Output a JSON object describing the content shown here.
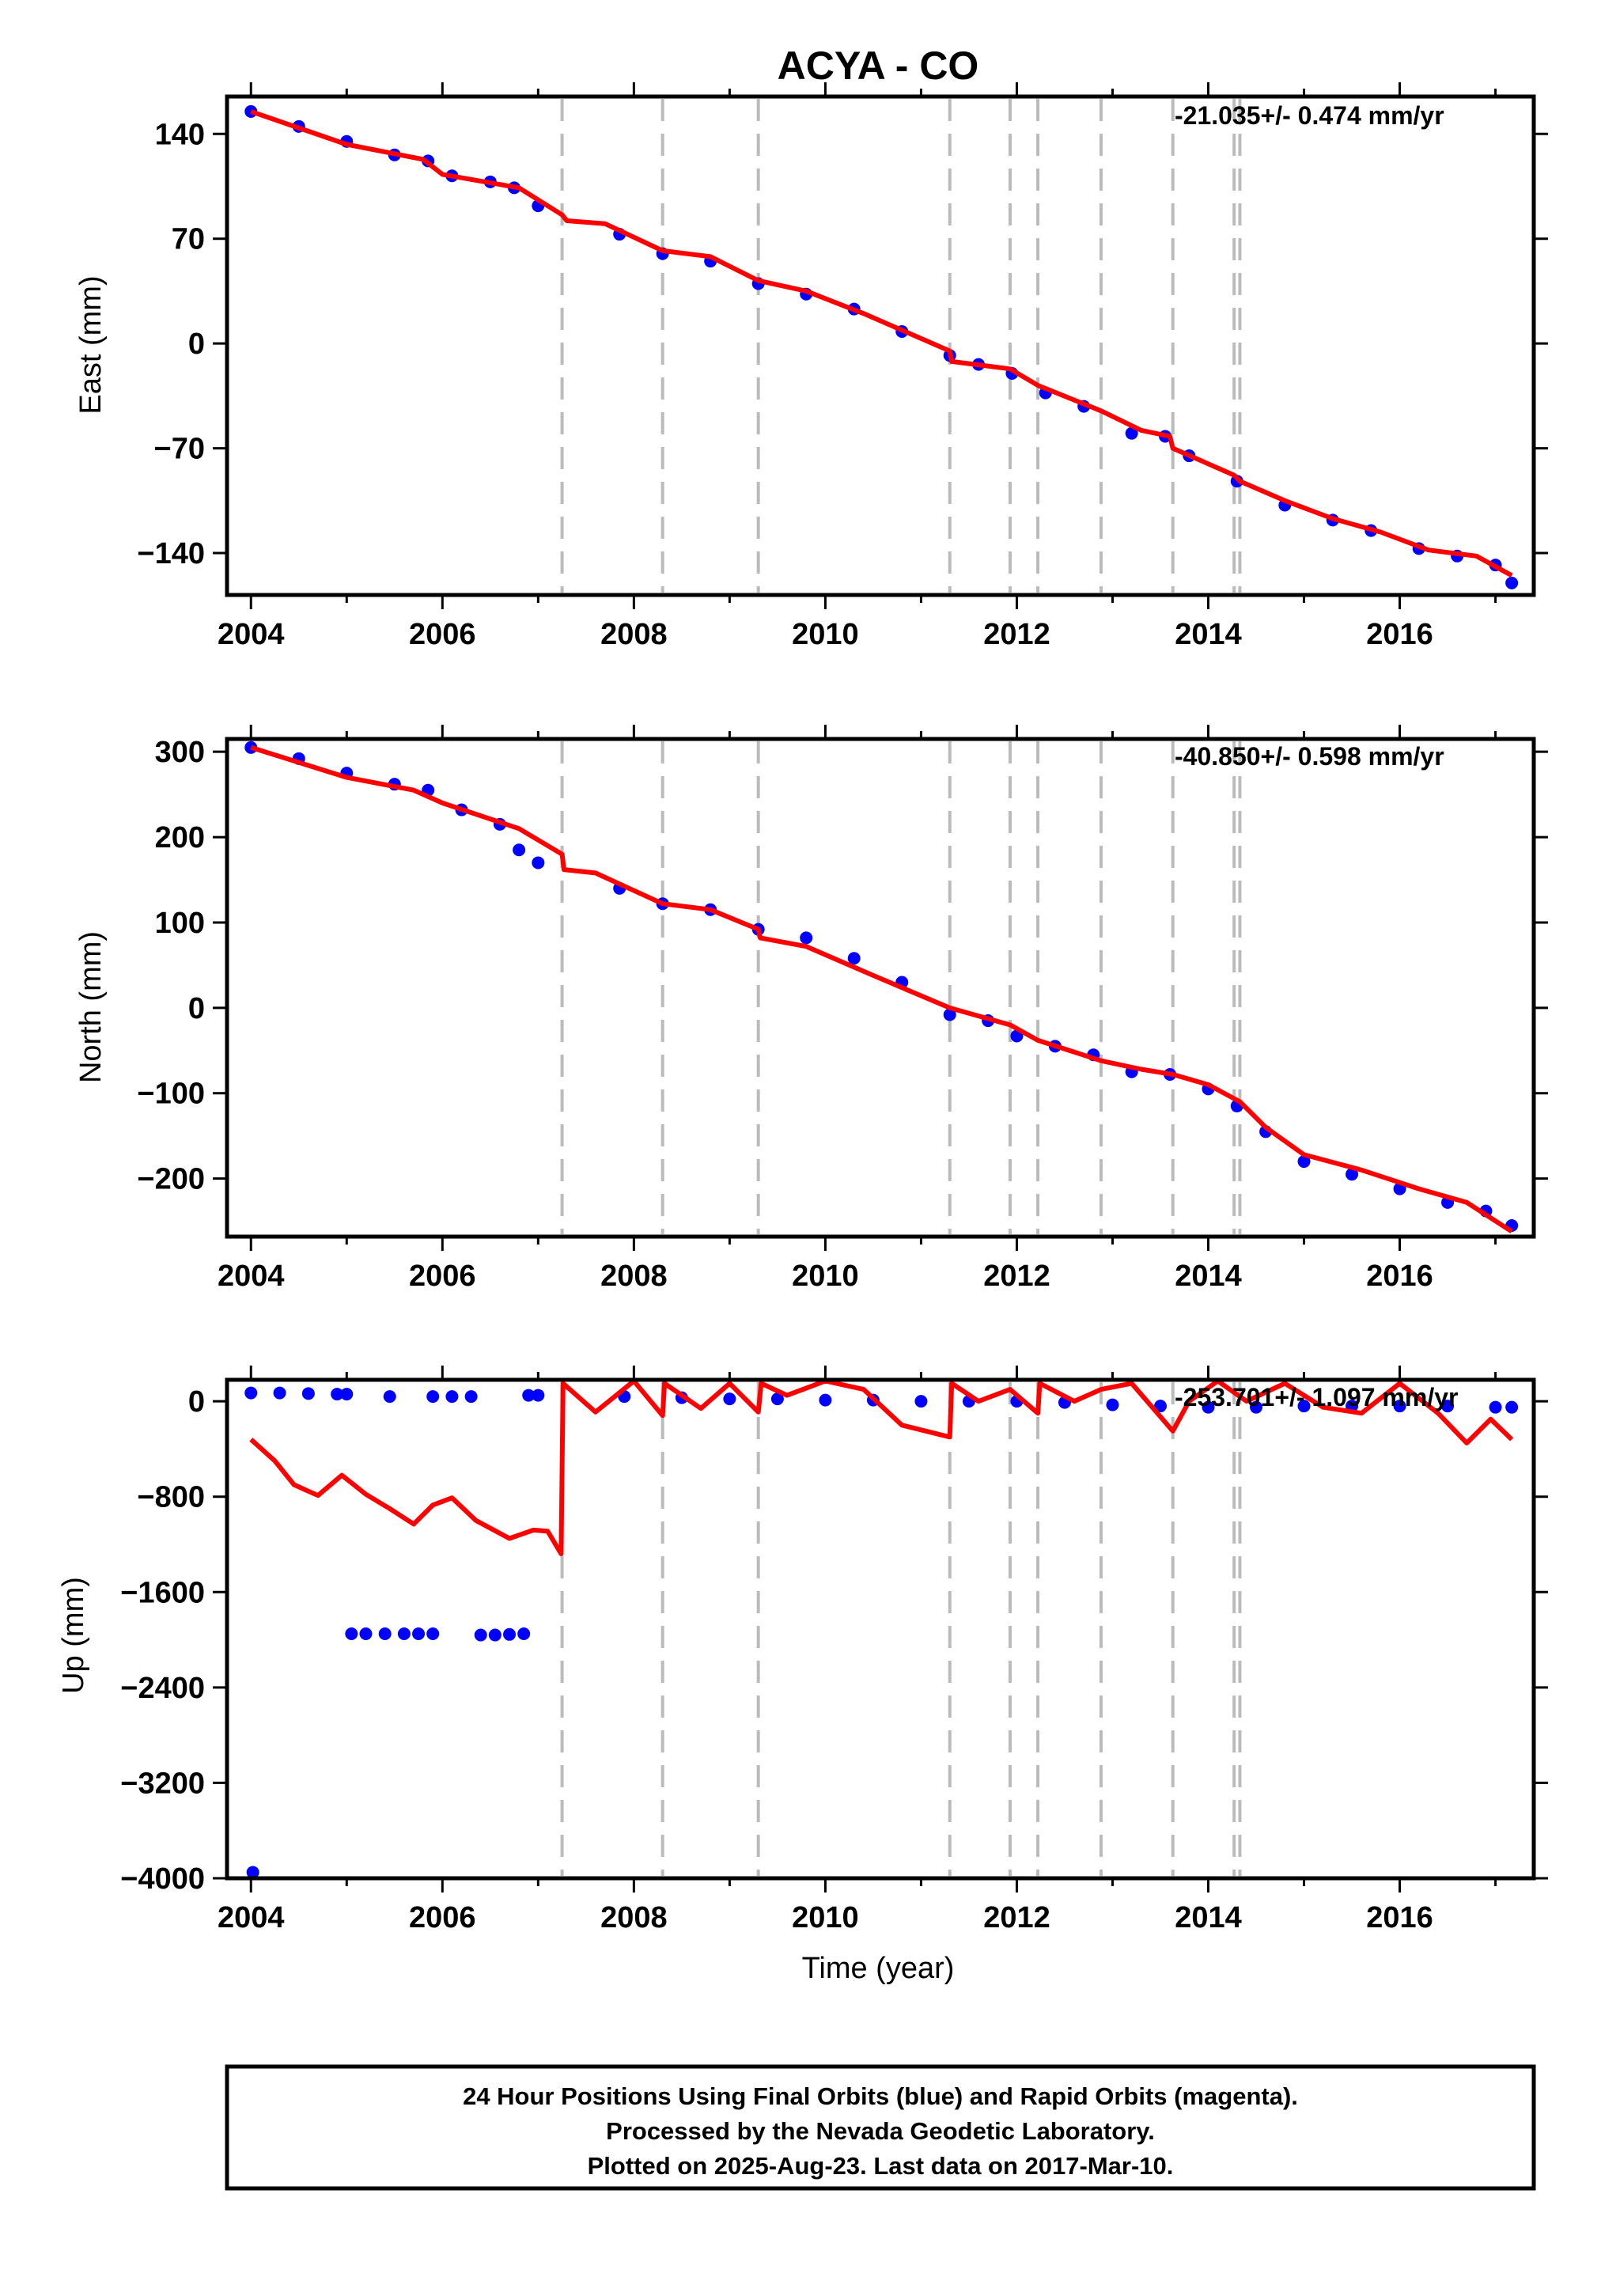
{
  "chart_data": {
    "type": "scatter",
    "title": "ACYA - CO",
    "xlabel": "Time (year)",
    "colors": {
      "final_orbits": "#0000ff",
      "model": "#ff0000",
      "offset_lines": "#bbbbbb",
      "frame": "#000000"
    },
    "x_range": [
      2003.75,
      2017.4
    ],
    "x_ticks": [
      2004,
      2006,
      2008,
      2010,
      2012,
      2014,
      2016
    ],
    "offset_lines": [
      2007.25,
      2008.3,
      2009.3,
      2011.3,
      2011.93,
      2012.22,
      2012.88,
      2013.63,
      2014.27,
      2014.33
    ],
    "panels": [
      {
        "name": "east",
        "ylabel": "East (mm)",
        "ylim": [
          -168,
          165
        ],
        "y_ticks": [
          140,
          70,
          0,
          -70,
          -140
        ],
        "rate": "-21.035+/- 0.474 mm/yr",
        "observations": [
          [
            2004.0,
            155
          ],
          [
            2004.5,
            145
          ],
          [
            2005.0,
            135
          ],
          [
            2005.5,
            126
          ],
          [
            2005.85,
            122
          ],
          [
            2006.1,
            112
          ],
          [
            2006.5,
            108
          ],
          [
            2006.75,
            104
          ],
          [
            2007.0,
            92
          ],
          [
            2007.85,
            73
          ],
          [
            2008.3,
            60
          ],
          [
            2008.8,
            55
          ],
          [
            2009.3,
            40
          ],
          [
            2009.8,
            33
          ],
          [
            2010.3,
            23
          ],
          [
            2010.8,
            8
          ],
          [
            2011.3,
            -8
          ],
          [
            2011.6,
            -14
          ],
          [
            2011.95,
            -20
          ],
          [
            2012.3,
            -33
          ],
          [
            2012.7,
            -42
          ],
          [
            2013.2,
            -60
          ],
          [
            2013.55,
            -62
          ],
          [
            2013.8,
            -75
          ],
          [
            2014.3,
            -92
          ],
          [
            2014.8,
            -108
          ],
          [
            2015.3,
            -118
          ],
          [
            2015.7,
            -125
          ],
          [
            2016.2,
            -137
          ],
          [
            2016.6,
            -142
          ],
          [
            2017.0,
            -148
          ],
          [
            2017.17,
            -160
          ]
        ],
        "model": [
          [
            2004.0,
            155
          ],
          [
            2005.0,
            133
          ],
          [
            2005.8,
            123
          ],
          [
            2006.0,
            113
          ],
          [
            2006.8,
            104
          ],
          [
            2007.25,
            86
          ],
          [
            2007.3,
            82
          ],
          [
            2007.7,
            80
          ],
          [
            2008.3,
            62
          ],
          [
            2008.8,
            58
          ],
          [
            2009.3,
            42
          ],
          [
            2009.8,
            35
          ],
          [
            2010.4,
            20
          ],
          [
            2011.3,
            -5
          ],
          [
            2011.32,
            -12
          ],
          [
            2011.93,
            -17
          ],
          [
            2012.22,
            -28
          ],
          [
            2012.88,
            -45
          ],
          [
            2013.3,
            -58
          ],
          [
            2013.6,
            -62
          ],
          [
            2013.63,
            -70
          ],
          [
            2014.27,
            -88
          ],
          [
            2014.33,
            -92
          ],
          [
            2014.8,
            -105
          ],
          [
            2015.3,
            -117
          ],
          [
            2015.8,
            -126
          ],
          [
            2016.3,
            -138
          ],
          [
            2016.8,
            -142
          ],
          [
            2017.17,
            -155
          ]
        ]
      },
      {
        "name": "north",
        "ylabel": "North (mm)",
        "ylim": [
          -268,
          315
        ],
        "y_ticks": [
          300,
          200,
          100,
          0,
          -100,
          -200
        ],
        "rate": "-40.850+/- 0.598 mm/yr",
        "observations": [
          [
            2004.0,
            305
          ],
          [
            2004.5,
            292
          ],
          [
            2005.0,
            275
          ],
          [
            2005.5,
            262
          ],
          [
            2005.85,
            255
          ],
          [
            2006.2,
            232
          ],
          [
            2006.6,
            215
          ],
          [
            2006.8,
            185
          ],
          [
            2007.0,
            170
          ],
          [
            2007.85,
            140
          ],
          [
            2008.3,
            122
          ],
          [
            2008.8,
            115
          ],
          [
            2009.3,
            92
          ],
          [
            2009.8,
            82
          ],
          [
            2010.3,
            58
          ],
          [
            2010.8,
            30
          ],
          [
            2011.3,
            -8
          ],
          [
            2011.7,
            -15
          ],
          [
            2012.0,
            -33
          ],
          [
            2012.4,
            -45
          ],
          [
            2012.8,
            -55
          ],
          [
            2013.2,
            -75
          ],
          [
            2013.6,
            -78
          ],
          [
            2014.0,
            -95
          ],
          [
            2014.3,
            -115
          ],
          [
            2014.6,
            -145
          ],
          [
            2015.0,
            -180
          ],
          [
            2015.5,
            -195
          ],
          [
            2016.0,
            -212
          ],
          [
            2016.5,
            -228
          ],
          [
            2016.9,
            -238
          ],
          [
            2017.17,
            -255
          ]
        ],
        "model": [
          [
            2004.0,
            305
          ],
          [
            2005.0,
            270
          ],
          [
            2005.7,
            255
          ],
          [
            2006.0,
            240
          ],
          [
            2006.8,
            210
          ],
          [
            2007.25,
            180
          ],
          [
            2007.27,
            162
          ],
          [
            2007.6,
            158
          ],
          [
            2008.3,
            122
          ],
          [
            2008.8,
            115
          ],
          [
            2009.3,
            92
          ],
          [
            2009.32,
            82
          ],
          [
            2009.8,
            72
          ],
          [
            2010.5,
            38
          ],
          [
            2011.3,
            0
          ],
          [
            2011.93,
            -20
          ],
          [
            2012.22,
            -38
          ],
          [
            2012.88,
            -62
          ],
          [
            2013.3,
            -72
          ],
          [
            2013.63,
            -78
          ],
          [
            2014.0,
            -90
          ],
          [
            2014.33,
            -110
          ],
          [
            2014.6,
            -140
          ],
          [
            2015.0,
            -172
          ],
          [
            2015.6,
            -190
          ],
          [
            2016.2,
            -212
          ],
          [
            2016.7,
            -228
          ],
          [
            2017.17,
            -262
          ]
        ]
      },
      {
        "name": "up",
        "ylabel": "Up (mm)",
        "ylim": [
          -4000,
          180
        ],
        "y_ticks": [
          0,
          -800,
          -1600,
          -2400,
          -3200,
          -4000
        ],
        "rate": "-253.701+/- 1.097 mm/yr",
        "observations": [
          [
            2004.0,
            70
          ],
          [
            2004.3,
            70
          ],
          [
            2004.6,
            65
          ],
          [
            2004.9,
            60
          ],
          [
            2005.0,
            60
          ],
          [
            2005.45,
            40
          ],
          [
            2005.9,
            40
          ],
          [
            2006.1,
            40
          ],
          [
            2006.3,
            40
          ],
          [
            2006.9,
            50
          ],
          [
            2007.0,
            50
          ],
          [
            2007.9,
            40
          ],
          [
            2008.5,
            30
          ],
          [
            2009.0,
            20
          ],
          [
            2009.5,
            20
          ],
          [
            2010.0,
            10
          ],
          [
            2010.5,
            10
          ],
          [
            2011.0,
            0
          ],
          [
            2011.5,
            0
          ],
          [
            2012.0,
            0
          ],
          [
            2012.5,
            -10
          ],
          [
            2013.0,
            -30
          ],
          [
            2013.5,
            -40
          ],
          [
            2014.0,
            -50
          ],
          [
            2014.5,
            -50
          ],
          [
            2015.0,
            -40
          ],
          [
            2015.5,
            -40
          ],
          [
            2016.0,
            -40
          ],
          [
            2016.5,
            -40
          ],
          [
            2017.0,
            -50
          ],
          [
            2017.17,
            -50
          ],
          [
            2005.05,
            -1950
          ],
          [
            2005.2,
            -1950
          ],
          [
            2005.4,
            -1950
          ],
          [
            2005.6,
            -1950
          ],
          [
            2005.75,
            -1950
          ],
          [
            2005.9,
            -1950
          ],
          [
            2006.4,
            -1960
          ],
          [
            2006.55,
            -1960
          ],
          [
            2006.7,
            -1955
          ],
          [
            2006.85,
            -1950
          ],
          [
            2004.02,
            -3950
          ]
        ],
        "model": [
          [
            2004.0,
            -320
          ],
          [
            2004.25,
            -500
          ],
          [
            2004.45,
            -700
          ],
          [
            2004.7,
            -790
          ],
          [
            2004.95,
            -620
          ],
          [
            2005.2,
            -780
          ],
          [
            2005.45,
            -900
          ],
          [
            2005.7,
            -1030
          ],
          [
            2005.9,
            -870
          ],
          [
            2006.1,
            -810
          ],
          [
            2006.35,
            -1000
          ],
          [
            2006.7,
            -1150
          ],
          [
            2006.95,
            -1080
          ],
          [
            2007.1,
            -1090
          ],
          [
            2007.24,
            -1280
          ],
          [
            2007.26,
            150
          ],
          [
            2007.6,
            -90
          ],
          [
            2008.0,
            170
          ],
          [
            2008.3,
            -120
          ],
          [
            2008.32,
            150
          ],
          [
            2008.7,
            -60
          ],
          [
            2009.0,
            150
          ],
          [
            2009.3,
            -90
          ],
          [
            2009.33,
            150
          ],
          [
            2009.6,
            50
          ],
          [
            2010.0,
            170
          ],
          [
            2010.4,
            100
          ],
          [
            2010.8,
            -200
          ],
          [
            2011.3,
            -300
          ],
          [
            2011.32,
            150
          ],
          [
            2011.6,
            0
          ],
          [
            2011.93,
            100
          ],
          [
            2012.22,
            -100
          ],
          [
            2012.24,
            150
          ],
          [
            2012.6,
            0
          ],
          [
            2012.88,
            100
          ],
          [
            2013.2,
            150
          ],
          [
            2013.63,
            -250
          ],
          [
            2013.8,
            0
          ],
          [
            2014.1,
            170
          ],
          [
            2014.4,
            0
          ],
          [
            2014.8,
            150
          ],
          [
            2015.2,
            -50
          ],
          [
            2015.6,
            -100
          ],
          [
            2016.0,
            150
          ],
          [
            2016.4,
            -100
          ],
          [
            2016.7,
            -350
          ],
          [
            2016.95,
            -150
          ],
          [
            2017.17,
            -320
          ]
        ]
      }
    ]
  },
  "footer": {
    "line1": "24 Hour Positions Using Final Orbits (blue) and Rapid Orbits (magenta).",
    "line2": "Processed by the Nevada Geodetic Laboratory.",
    "line3": "Plotted on 2025-Aug-23. Last data on 2017-Mar-10."
  }
}
